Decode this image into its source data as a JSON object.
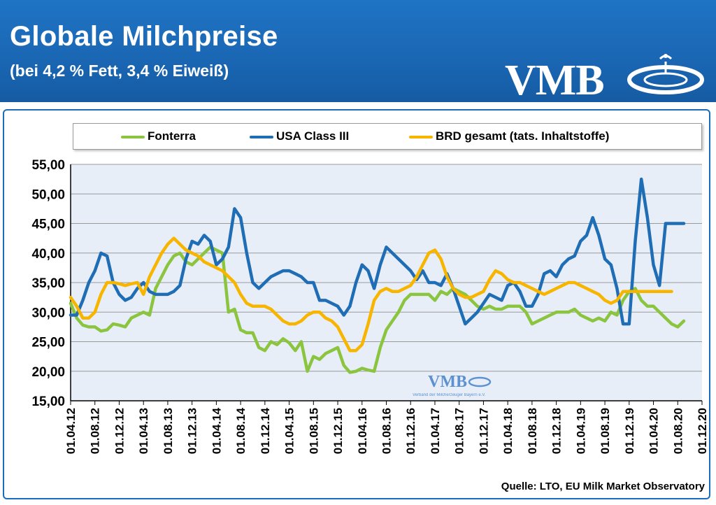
{
  "header": {
    "title": "Globale Milchpreise",
    "subtitle": "(bei 4,2 % Fett, 3,4 % Eiweiß)",
    "logo_text": "VMB"
  },
  "watermark": {
    "text": "VMB",
    "subtext": "Verband der Milcherzeuger Bayern e.V."
  },
  "source": "Quelle:  LTO, EU Milk Market Observatory",
  "colors": {
    "fonterra": "#8bc53f",
    "usa": "#1f6db5",
    "brd": "#f7b500",
    "header": "#1a66b3"
  },
  "chart_data": {
    "type": "line",
    "ylim": [
      15,
      55
    ],
    "yticks": [
      "15,00",
      "20,00",
      "25,00",
      "30,00",
      "35,00",
      "40,00",
      "45,00",
      "50,00",
      "55,00"
    ],
    "xticks": [
      "01.04.12",
      "01.08.12",
      "01.12.12",
      "01.04.13",
      "01.08.13",
      "01.12.13",
      "01.04.14",
      "01.08.14",
      "01.12.14",
      "01.04.15",
      "01.08.15",
      "01.12.15",
      "01.04.16",
      "01.08.16",
      "01.12.16",
      "01.04.17",
      "01.08.17",
      "01.12.17",
      "01.04.18",
      "01.08.18",
      "01.12.18",
      "01.04.19",
      "01.08.19",
      "01.12.19",
      "01.04.20",
      "01.08.20",
      "01.12.20"
    ],
    "x_unit": "months since 01.04.12",
    "series": [
      {
        "name": "Fonterra",
        "x": [
          0,
          1,
          2,
          3,
          4,
          5,
          6,
          7,
          8,
          9,
          10,
          11,
          12,
          13,
          14,
          15,
          16,
          17,
          18,
          19,
          20,
          21,
          22,
          23,
          24,
          25,
          26,
          27,
          28,
          29,
          30,
          31,
          32,
          33,
          34,
          35,
          36,
          37,
          38,
          39,
          40,
          41,
          42,
          43,
          44,
          45,
          46,
          47,
          48,
          49,
          50,
          51,
          52,
          53,
          54,
          55,
          56,
          57,
          58,
          59,
          60,
          61,
          62,
          63,
          64,
          65,
          66,
          67,
          68,
          69,
          70,
          71,
          72,
          73,
          74,
          75,
          76,
          77,
          78,
          79,
          80,
          81,
          82,
          83,
          84,
          85,
          86,
          87,
          88,
          89,
          90,
          91,
          92,
          93,
          94,
          95,
          96,
          97,
          98,
          99,
          100,
          101
        ],
        "values": [
          31.5,
          29,
          27.8,
          27.5,
          27.5,
          26.8,
          27,
          28,
          27.8,
          27.5,
          29,
          29.5,
          30,
          29.5,
          34,
          36,
          38,
          39.5,
          40,
          38.5,
          38,
          39,
          40,
          41,
          40.5,
          40,
          30,
          30.5,
          27,
          26.5,
          26.5,
          24,
          23.5,
          25,
          24.5,
          25.5,
          24.8,
          23.5,
          25,
          20,
          22.5,
          22,
          23,
          23.5,
          24,
          21,
          19.8,
          20,
          20.5,
          20.2,
          20,
          24,
          27,
          28.5,
          30,
          32,
          33,
          33,
          33,
          33,
          32,
          33.5,
          33,
          34,
          33.5,
          33,
          32,
          31,
          30.5,
          31,
          30.5,
          30.5,
          31,
          31,
          31,
          30,
          28,
          28.5,
          29,
          29.5,
          30,
          30,
          30,
          30.5,
          29.5,
          29,
          28.5,
          29,
          28.5,
          30,
          29.5,
          32,
          33.5,
          34,
          32,
          31,
          31,
          30,
          29,
          28,
          27.5,
          28.5
        ]
      },
      {
        "name": "USA Class III",
        "x": [
          0,
          1,
          2,
          3,
          4,
          5,
          6,
          7,
          8,
          9,
          10,
          11,
          12,
          13,
          14,
          15,
          16,
          17,
          18,
          19,
          20,
          21,
          22,
          23,
          24,
          25,
          26,
          27,
          28,
          29,
          30,
          31,
          32,
          33,
          34,
          35,
          36,
          37,
          38,
          39,
          40,
          41,
          42,
          43,
          44,
          45,
          46,
          47,
          48,
          49,
          50,
          51,
          52,
          53,
          54,
          55,
          56,
          57,
          58,
          59,
          60,
          61,
          62,
          63,
          64,
          65,
          66,
          67,
          68,
          69,
          70,
          71,
          72,
          73,
          74,
          75,
          76,
          77,
          78,
          79,
          80,
          81,
          82,
          83,
          84,
          85,
          86,
          87,
          88,
          89,
          90,
          91,
          92,
          93,
          94,
          95,
          96,
          97,
          98,
          99,
          100,
          101
        ],
        "values": [
          29.5,
          29.5,
          32,
          35,
          37,
          40,
          39.5,
          35,
          33,
          32,
          32.5,
          34,
          35,
          33.5,
          33,
          33,
          33,
          33.5,
          34.5,
          39,
          42,
          41.5,
          43,
          42,
          38,
          39,
          41,
          47.5,
          46,
          40,
          35,
          34,
          35,
          36,
          36.5,
          37,
          37,
          36.5,
          36,
          35,
          35,
          32,
          32,
          31.5,
          31,
          29.5,
          31,
          35,
          38,
          37,
          34,
          38,
          41,
          40,
          39,
          38,
          37,
          35.5,
          37,
          35,
          35,
          34.5,
          36.5,
          34,
          31,
          28,
          29,
          30,
          31.5,
          33,
          32.5,
          32,
          34.5,
          35,
          33.5,
          31,
          31,
          33,
          36.5,
          37,
          36,
          38,
          39,
          39.5,
          42,
          43,
          46,
          43,
          39,
          38,
          34,
          28,
          28,
          42,
          52.5,
          46,
          38,
          34.5,
          45,
          45,
          45,
          45
        ]
      },
      {
        "name": "BRD gesamt (tats. Inhaltstoffe)",
        "x": [
          0,
          1,
          2,
          3,
          4,
          5,
          6,
          7,
          8,
          9,
          10,
          11,
          12,
          13,
          14,
          15,
          16,
          17,
          18,
          19,
          20,
          21,
          22,
          23,
          24,
          25,
          26,
          27,
          28,
          29,
          30,
          31,
          32,
          33,
          34,
          35,
          36,
          37,
          38,
          39,
          40,
          41,
          42,
          43,
          44,
          45,
          46,
          47,
          48,
          49,
          50,
          51,
          52,
          53,
          54,
          55,
          56,
          57,
          58,
          59,
          60,
          61,
          62,
          63,
          64,
          65,
          66,
          67,
          68,
          69,
          70,
          71,
          72,
          73,
          74,
          75,
          76,
          77,
          78,
          79,
          80,
          81,
          82,
          83,
          84,
          85,
          86,
          87,
          88,
          89,
          90,
          91,
          92,
          93,
          94,
          95,
          96,
          97,
          98,
          99
        ],
        "values": [
          32.5,
          31,
          29,
          29,
          30,
          33,
          35,
          35,
          34.8,
          34.5,
          34.8,
          35,
          33,
          36,
          38,
          40,
          41.5,
          42.5,
          41.5,
          40.5,
          40,
          39.5,
          38.5,
          38,
          37.5,
          37,
          36,
          35,
          33,
          31.5,
          31,
          31,
          31,
          30.5,
          29.5,
          28.5,
          28,
          28,
          28.5,
          29.5,
          30,
          30,
          29,
          28.5,
          27.5,
          25.5,
          23.5,
          23.5,
          24.5,
          28,
          32,
          33.5,
          34,
          33.5,
          33.5,
          34,
          34.5,
          36,
          38,
          40,
          40.5,
          39,
          36,
          34,
          33,
          32.5,
          32.5,
          33,
          33.5,
          35.5,
          37,
          36.5,
          35.5,
          35,
          35,
          34.5,
          34,
          33.5,
          33,
          33.5,
          34,
          34.5,
          35,
          35,
          34.5,
          34,
          33.5,
          33,
          32,
          31.5,
          32,
          33.5,
          33.5,
          33.5,
          33.5,
          33.5,
          33.5,
          33.5,
          33.5,
          33.5
        ]
      }
    ]
  }
}
